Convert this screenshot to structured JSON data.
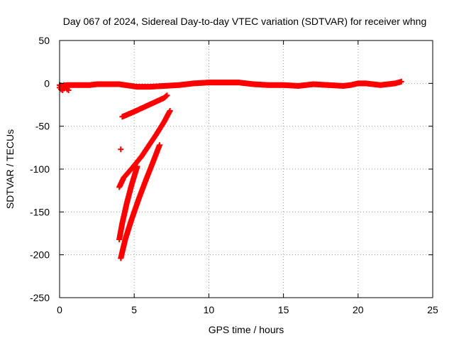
{
  "chart_data": {
    "type": "scatter",
    "title": "Day 067 of 2024, Sidereal Day-to-day VTEC variation (SDTVAR) for receiver whng",
    "xlabel": "GPS time / hours",
    "ylabel": "SDTVAR / TECUs",
    "xlim": [
      0,
      25
    ],
    "ylim": [
      -250,
      50
    ],
    "xticks": [
      0,
      5,
      10,
      15,
      20,
      25
    ],
    "yticks": [
      50,
      0,
      -50,
      -100,
      -150,
      -200,
      -250
    ],
    "xtick_labels": [
      "0",
      "5",
      "10",
      "15",
      "20",
      "25"
    ],
    "ytick_labels": [
      "50",
      "0",
      "-50",
      "-100",
      "-150",
      "-200",
      "-250"
    ],
    "grid": true,
    "marker": "plus",
    "color": "#ff0000",
    "series": [
      {
        "name": "main-near-zero",
        "x": [
          0.0,
          0.2,
          0.5,
          0.8,
          1.0,
          1.5,
          2.0,
          2.5,
          3.0,
          3.5,
          4.0,
          5.2,
          6.0,
          7.0,
          8.0,
          9.0,
          10.0,
          11.0,
          12.0,
          13.0,
          14.0,
          15.0,
          16.0,
          16.5,
          17.0,
          18.0,
          19.0,
          19.5,
          20.0,
          20.5,
          21.0,
          21.5,
          22.0,
          22.5,
          22.9
        ],
        "y": [
          -2,
          -3,
          -2,
          -2,
          -2,
          -2,
          -2,
          -1,
          -1,
          -1,
          -1,
          -4,
          -4,
          -3,
          -2,
          0,
          1,
          1,
          1,
          -1,
          -2,
          -2,
          -3,
          -2,
          -1,
          -2,
          -3,
          -2,
          0,
          0,
          -1,
          -2,
          -1,
          0,
          2
        ]
      },
      {
        "name": "early-scatter",
        "x": [
          0.0,
          0.1,
          0.2,
          0.3,
          0.4,
          0.5,
          0.6,
          0.1,
          0.3,
          0.5
        ],
        "y": [
          -5,
          -7,
          -8,
          -6,
          -4,
          -7,
          -8,
          -3,
          -2,
          -6
        ]
      },
      {
        "name": "arc-1",
        "x": [
          4.2,
          4.6,
          5.0,
          5.5,
          6.0,
          6.5,
          7.0,
          7.2
        ],
        "y": [
          -39,
          -36,
          -33,
          -29,
          -25,
          -21,
          -17,
          -14
        ]
      },
      {
        "name": "arc-2",
        "x": [
          4.0,
          4.3,
          4.8,
          5.5,
          6.0,
          6.5,
          7.0,
          7.4
        ],
        "y": [
          -121,
          -110,
          -100,
          -85,
          -72,
          -59,
          -45,
          -32
        ]
      },
      {
        "name": "arc-3",
        "x": [
          4.0,
          4.2,
          4.5,
          4.8,
          5.2
        ],
        "y": [
          -182,
          -163,
          -140,
          -120,
          -97
        ]
      },
      {
        "name": "arc-4",
        "x": [
          4.1,
          4.4,
          4.8,
          5.3,
          5.8,
          6.3,
          6.7
        ],
        "y": [
          -204,
          -182,
          -160,
          -135,
          -112,
          -90,
          -72
        ]
      },
      {
        "name": "outlier",
        "x": [
          4.1
        ],
        "y": [
          -77
        ]
      }
    ]
  }
}
